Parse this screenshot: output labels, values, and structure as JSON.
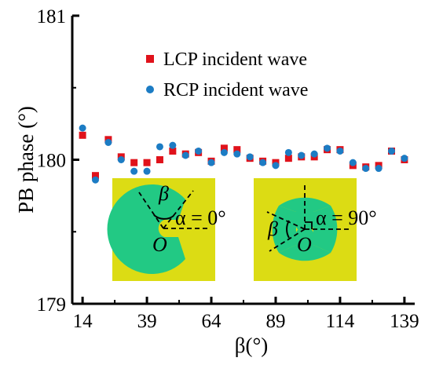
{
  "chart_data": {
    "type": "scatter",
    "xlabel": "β(°)",
    "ylabel": "PB phase (°)",
    "xlim": [
      10,
      143
    ],
    "ylim": [
      179,
      181
    ],
    "xticks": [
      14,
      39,
      64,
      89,
      114,
      139
    ],
    "yticks": [
      179,
      180,
      181
    ],
    "legend_position": "top-center",
    "grid": false,
    "series": [
      {
        "name": "LCP incident wave",
        "marker": "square",
        "color": "#e0121b",
        "x": [
          14,
          19,
          24,
          29,
          34,
          39,
          44,
          49,
          54,
          59,
          64,
          69,
          74,
          79,
          84,
          89,
          94,
          99,
          104,
          109,
          114,
          119,
          124,
          129,
          134,
          139
        ],
        "y": [
          180.17,
          179.89,
          180.14,
          180.02,
          179.98,
          179.98,
          180.0,
          180.06,
          180.04,
          180.05,
          179.99,
          180.08,
          180.07,
          180.01,
          179.99,
          179.98,
          180.01,
          180.02,
          180.02,
          180.07,
          180.07,
          179.96,
          179.95,
          179.96,
          180.06,
          180.0
        ]
      },
      {
        "name": "RCP incident wave",
        "marker": "circle",
        "color": "#1c7cc4",
        "x": [
          14,
          19,
          24,
          29,
          34,
          39,
          44,
          49,
          54,
          59,
          64,
          69,
          74,
          79,
          84,
          89,
          94,
          99,
          104,
          109,
          114,
          119,
          124,
          129,
          134,
          139
        ],
        "y": [
          180.22,
          179.86,
          180.12,
          180.0,
          179.92,
          179.92,
          180.09,
          180.1,
          180.03,
          180.06,
          179.98,
          180.05,
          180.04,
          180.02,
          179.98,
          179.96,
          180.05,
          180.03,
          180.04,
          180.08,
          180.06,
          179.98,
          179.94,
          179.94,
          180.06,
          180.01
        ]
      }
    ],
    "insets": [
      {
        "alpha_label": "α = 0°",
        "beta_label": "β",
        "origin_label": "O"
      },
      {
        "alpha_label": "α = 90°",
        "beta_label": "β",
        "origin_label": "O"
      }
    ],
    "colors": {
      "inset_background": "#dcdc14",
      "inset_shape": "#22c984"
    }
  }
}
